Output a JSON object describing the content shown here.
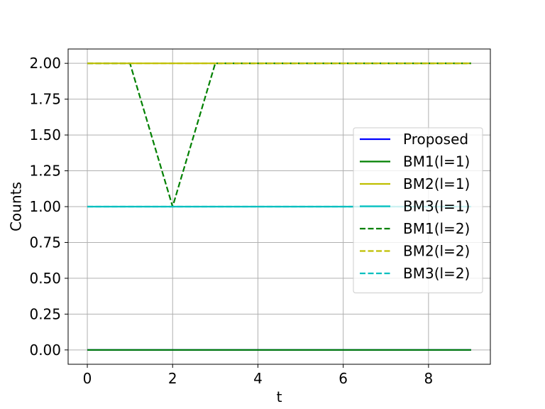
{
  "chart_data": {
    "type": "line",
    "title": "",
    "xlabel": "t",
    "ylabel": "Counts",
    "xlim": [
      -0.45,
      9.45
    ],
    "ylim": [
      -0.1,
      2.1
    ],
    "xticks": [
      0,
      2,
      4,
      6,
      8
    ],
    "xtick_labels": [
      "0",
      "2",
      "4",
      "6",
      "8"
    ],
    "yticks": [
      0,
      0.25,
      0.5,
      0.75,
      1,
      1.25,
      1.5,
      1.75,
      2
    ],
    "ytick_labels": [
      "0.00",
      "0.25",
      "0.50",
      "0.75",
      "1.00",
      "1.25",
      "1.50",
      "1.75",
      "2.00"
    ],
    "grid": true,
    "legend_position": "center-right",
    "x": [
      0,
      1,
      2,
      3,
      4,
      5,
      6,
      7,
      8,
      9
    ],
    "series": [
      {
        "name": "Proposed",
        "color": "#0000ff",
        "dash": "solid",
        "values": [
          0,
          0,
          0,
          0,
          0,
          0,
          0,
          0,
          0,
          0
        ]
      },
      {
        "name": "BM1(l=1)",
        "color": "#008000",
        "dash": "solid",
        "values": [
          0,
          0,
          0,
          0,
          0,
          0,
          0,
          0,
          0,
          0
        ]
      },
      {
        "name": "BM2(l=1)",
        "color": "#bfbf00",
        "dash": "solid",
        "values": [
          2,
          2,
          2,
          2,
          2,
          2,
          2,
          2,
          2,
          2
        ]
      },
      {
        "name": "BM3(l=1)",
        "color": "#00bfbf",
        "dash": "solid",
        "values": [
          1,
          1,
          1,
          1,
          1,
          1,
          1,
          1,
          1,
          1
        ]
      },
      {
        "name": "BM1(l=2)",
        "color": "#008000",
        "dash": "dashed",
        "values": [
          2,
          2,
          1,
          2,
          2,
          2,
          2,
          2,
          2,
          2
        ]
      },
      {
        "name": "BM2(l=2)",
        "color": "#bfbf00",
        "dash": "dashed",
        "values": [
          2,
          2,
          2,
          2,
          2,
          2,
          2,
          2,
          2,
          2
        ]
      },
      {
        "name": "BM3(l=2)",
        "color": "#00bfbf",
        "dash": "dashed",
        "values": [
          1,
          1,
          1,
          1,
          1,
          1,
          1,
          1,
          1,
          1
        ]
      }
    ]
  }
}
